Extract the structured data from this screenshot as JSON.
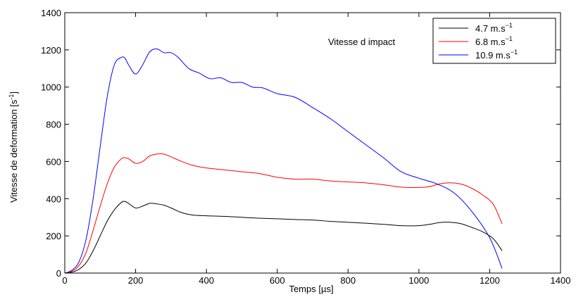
{
  "chart_data": {
    "type": "line",
    "title": "",
    "xlabel": "Temps [µs]",
    "ylabel_main": "Vitesse de deformation [s",
    "ylabel_sup": "-1",
    "ylabel_end": "]",
    "xlim": [
      0,
      1400
    ],
    "ylim": [
      0,
      1400
    ],
    "xticks": [
      0,
      200,
      400,
      600,
      800,
      1000,
      1200,
      1400
    ],
    "yticks": [
      0,
      200,
      400,
      600,
      800,
      1000,
      1200,
      1400
    ],
    "grid": false,
    "legend_placement": "top-right",
    "annotation": "Vitesse d impact",
    "series": [
      {
        "name_main": "4.7 m.s",
        "name_sup": "−1",
        "color": "#000000",
        "x": [
          0,
          20,
          40,
          60,
          80,
          100,
          120,
          140,
          160,
          170,
          180,
          200,
          220,
          240,
          260,
          280,
          300,
          330,
          360,
          400,
          450,
          500,
          550,
          600,
          650,
          700,
          750,
          800,
          850,
          900,
          950,
          1000,
          1030,
          1060,
          1090,
          1120,
          1150,
          1180,
          1210,
          1235
        ],
        "y": [
          0,
          5,
          20,
          55,
          120,
          200,
          280,
          340,
          380,
          385,
          375,
          350,
          360,
          375,
          372,
          365,
          350,
          325,
          312,
          308,
          305,
          300,
          295,
          292,
          288,
          285,
          278,
          273,
          268,
          262,
          255,
          255,
          262,
          272,
          273,
          265,
          245,
          222,
          185,
          120
        ]
      },
      {
        "name_main": "6.8 m.s",
        "name_sup": "−1",
        "color": "#ff0000",
        "x": [
          0,
          20,
          40,
          60,
          80,
          100,
          120,
          140,
          160,
          170,
          180,
          200,
          220,
          240,
          260,
          280,
          300,
          330,
          360,
          400,
          450,
          500,
          550,
          600,
          650,
          700,
          750,
          800,
          850,
          900,
          950,
          1000,
          1030,
          1060,
          1090,
          1120,
          1150,
          1180,
          1210,
          1235
        ],
        "y": [
          0,
          10,
          40,
          110,
          230,
          360,
          480,
          570,
          615,
          620,
          615,
          590,
          600,
          630,
          640,
          640,
          625,
          600,
          580,
          565,
          555,
          545,
          535,
          515,
          505,
          505,
          495,
          490,
          485,
          475,
          462,
          460,
          465,
          480,
          485,
          478,
          455,
          420,
          370,
          265
        ]
      },
      {
        "name_main": "10.9 m.s",
        "name_sup": "−1",
        "color": "#0000ff",
        "x": [
          0,
          20,
          40,
          60,
          80,
          100,
          120,
          140,
          160,
          170,
          180,
          200,
          220,
          240,
          260,
          280,
          300,
          320,
          350,
          380,
          410,
          440,
          470,
          500,
          530,
          560,
          600,
          650,
          700,
          750,
          800,
          850,
          900,
          950,
          1000,
          1050,
          1100,
          1150,
          1200,
          1235
        ],
        "y": [
          0,
          15,
          60,
          180,
          400,
          680,
          950,
          1120,
          1160,
          1155,
          1120,
          1070,
          1120,
          1190,
          1205,
          1185,
          1185,
          1160,
          1100,
          1075,
          1045,
          1050,
          1025,
          1025,
          1000,
          995,
          965,
          945,
          890,
          830,
          760,
          690,
          620,
          545,
          510,
          480,
          430,
          330,
          190,
          25
        ]
      }
    ]
  }
}
